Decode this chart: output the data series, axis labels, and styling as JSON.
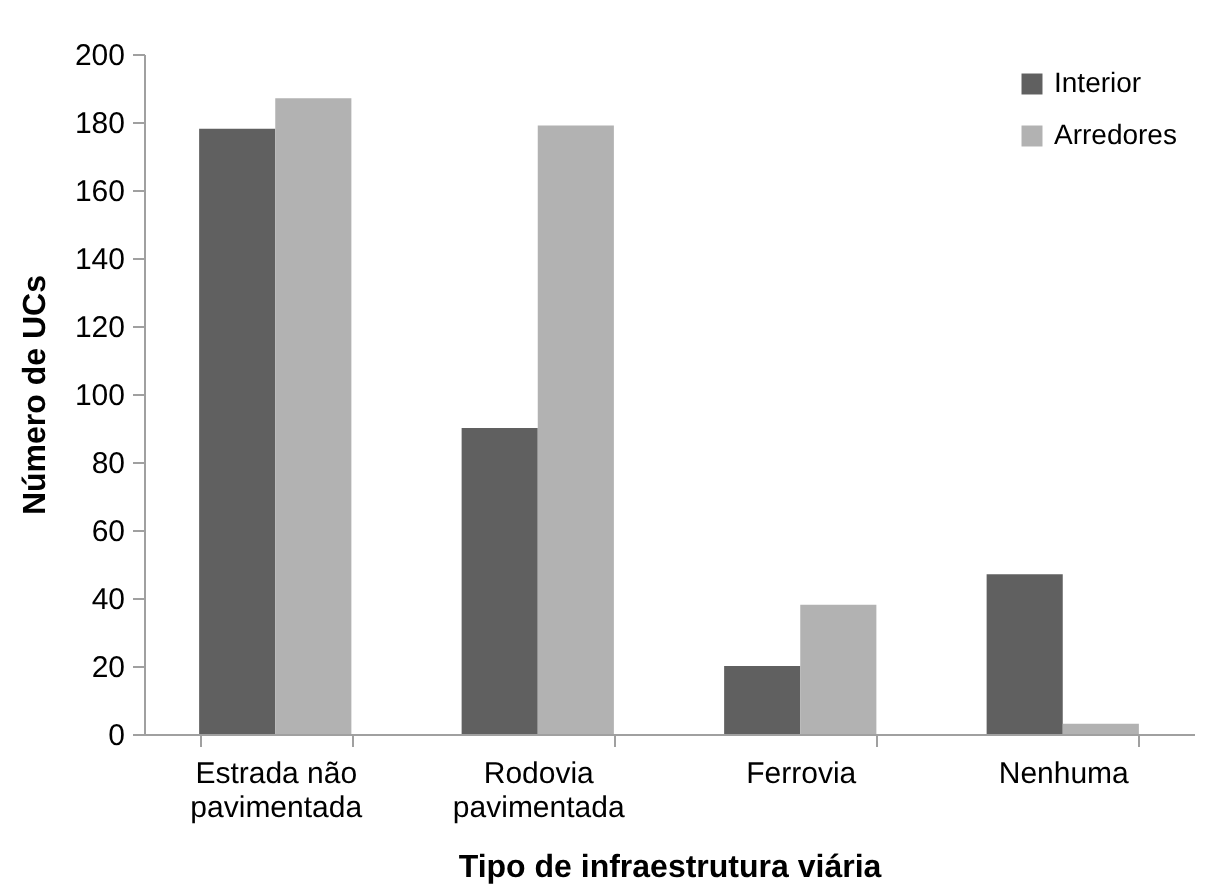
{
  "chart_data": {
    "type": "bar",
    "xlabel": "Tipo de infraestrutura viária",
    "ylabel": "Número de UCs",
    "categories": [
      "Estrada não pavimentada",
      "Rodovia pavimentada",
      "Ferrovia",
      "Nenhuma"
    ],
    "series": [
      {
        "name": "Interior",
        "color": "#606060",
        "values": [
          178,
          90,
          20,
          47
        ]
      },
      {
        "name": "Arredores",
        "color": "#b2b2b2",
        "values": [
          187,
          179,
          38,
          3
        ]
      }
    ],
    "ylim": [
      0,
      200
    ],
    "yticks": [
      0,
      20,
      40,
      60,
      80,
      100,
      120,
      140,
      160,
      180,
      200
    ],
    "grid": false,
    "legend": "top right"
  }
}
